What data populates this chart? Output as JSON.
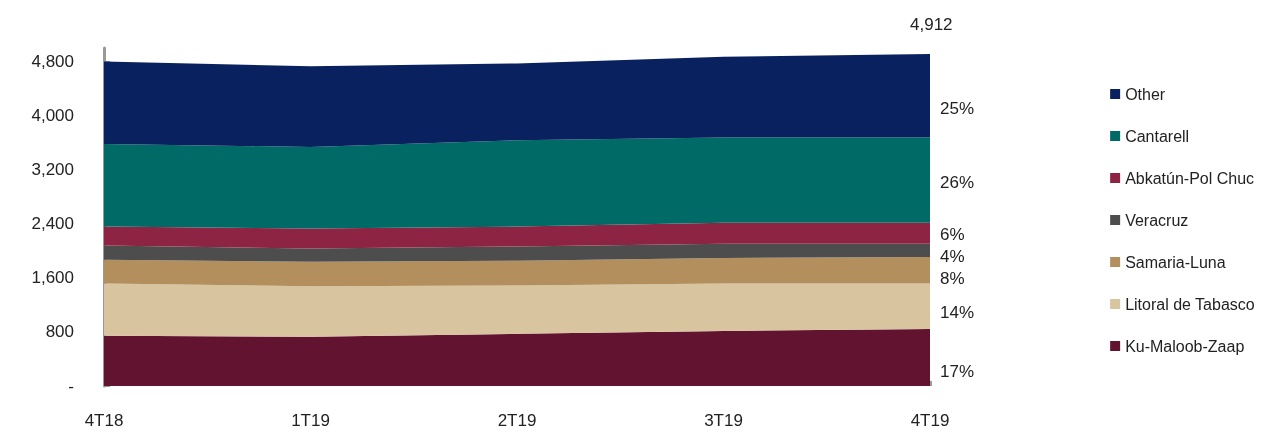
{
  "chart_data": {
    "type": "area",
    "stacked": true,
    "categories": [
      "4T18",
      "1T19",
      "2T19",
      "3T19",
      "4T19"
    ],
    "ylim": [
      0,
      5000
    ],
    "yticks": [
      {
        "value": 0,
        "label": "-"
      },
      {
        "value": 800,
        "label": "800"
      },
      {
        "value": 1600,
        "label": "1,600"
      },
      {
        "value": 2400,
        "label": "2,400"
      },
      {
        "value": 3200,
        "label": "3,200"
      },
      {
        "value": 4000,
        "label": "4,000"
      },
      {
        "value": 4800,
        "label": "4,800"
      }
    ],
    "series": [
      {
        "name": "Ku-Maloob-Zaap",
        "color": "#611330",
        "values": [
          744,
          730,
          772,
          814,
          842
        ]
      },
      {
        "name": "Litoral de Tabasco",
        "color": "#d8c49e",
        "values": [
          772,
          744,
          716,
          702,
          674
        ]
      },
      {
        "name": "Samaria-Luna",
        "color": "#b38f5e",
        "values": [
          351,
          365,
          365,
          379,
          393
        ]
      },
      {
        "name": "Veracruz",
        "color": "#4d4d4d",
        "values": [
          210,
          196,
          210,
          210,
          196
        ]
      },
      {
        "name": "Abkatún-Pol Chuc",
        "color": "#8e2443",
        "values": [
          281,
          295,
          295,
          309,
          309
        ]
      },
      {
        "name": "Cantarell",
        "color": "#006b66",
        "values": [
          1221,
          1207,
          1277,
          1263,
          1263
        ]
      },
      {
        "name": "Other",
        "color": "#0a2160",
        "values": [
          1221,
          1193,
          1137,
          1193,
          1235
        ]
      }
    ],
    "annotations": [
      "4,912",
      {
        "text": "25%",
        "x": "4T19",
        "y": 4098
      },
      {
        "text": "26%",
        "x": "4T19",
        "y": 3003
      },
      {
        "text": "6%",
        "x": "4T19",
        "y": 2246
      },
      {
        "text": "4%",
        "x": "4T19",
        "y": 1923
      },
      {
        "text": "8%",
        "x": "4T19",
        "y": 1586
      },
      {
        "text": "14%",
        "x": "4T19",
        "y": 1081
      },
      {
        "text": "17%",
        "x": "4T19",
        "y": 211
      }
    ],
    "grid": false,
    "legend": "right",
    "marker": "none"
  }
}
